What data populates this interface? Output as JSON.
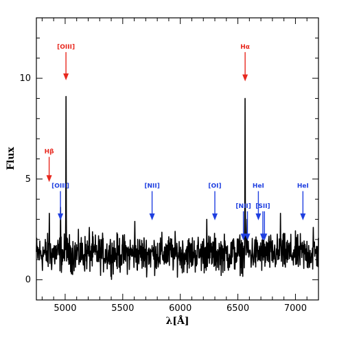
{
  "chart_data": {
    "type": "line",
    "title": "",
    "xlabel": "λ[Å]",
    "ylabel": "Flux",
    "xlim": [
      4750,
      7200
    ],
    "ylim": [
      -1,
      13
    ],
    "xticks": [
      5000,
      5500,
      6000,
      6500,
      7000
    ],
    "yticks": [
      0,
      5,
      10
    ],
    "grid": false,
    "legend": "none",
    "colors": {
      "spectrum": "#000000",
      "detected": "#e8281e",
      "expected": "#1f3fe0"
    },
    "series": [
      {
        "baseline": 1.3,
        "peaks": [
          {
            "x": 4863,
            "y": 3.3
          },
          {
            "x": 4960,
            "y": 3.6
          },
          {
            "x": 5008,
            "y": 9.1
          },
          {
            "x": 5210,
            "y": 2.6
          },
          {
            "x": 5605,
            "y": 2.9
          },
          {
            "x": 6230,
            "y": 3.0
          },
          {
            "x": 6563,
            "y": 9.0
          },
          {
            "x": 6580,
            "y": 3.0
          },
          {
            "x": 6870,
            "y": 3.3
          },
          {
            "x": 7155,
            "y": 2.6
          }
        ]
      }
    ],
    "annotations": [
      {
        "label": "Hβ",
        "x": 4861,
        "y_top": 6.1,
        "y_tip": 4.85,
        "kind": "detected"
      },
      {
        "label": "[OIII]",
        "x": 5007,
        "y_top": 11.3,
        "y_tip": 9.9,
        "kind": "detected"
      },
      {
        "label": "Hα",
        "x": 6563,
        "y_top": 11.3,
        "y_tip": 9.85,
        "kind": "detected"
      },
      {
        "label": "[OIII]",
        "x": 4959,
        "y_top": 4.4,
        "y_tip": 2.95,
        "kind": "expected"
      },
      {
        "label": "[NII]",
        "x": 5755,
        "y_top": 4.4,
        "y_tip": 2.95,
        "kind": "expected"
      },
      {
        "label": "[OI]",
        "x": 6300,
        "y_top": 4.4,
        "y_tip": 2.95,
        "kind": "expected"
      },
      {
        "label": "[NII]",
        "x": 6548,
        "y_top": 3.4,
        "y_tip": 1.95,
        "kind": "expected"
      },
      {
        "label": "",
        "x": 6583,
        "y_top": 3.4,
        "y_tip": 1.95,
        "kind": "expected"
      },
      {
        "label": "HeI",
        "x": 6678,
        "y_top": 4.4,
        "y_tip": 2.95,
        "kind": "expected"
      },
      {
        "label": "[SII]",
        "x": 6717,
        "y_top": 3.4,
        "y_tip": 1.95,
        "kind": "expected"
      },
      {
        "label": "",
        "x": 6731,
        "y_top": 3.4,
        "y_tip": 1.95,
        "kind": "expected"
      },
      {
        "label": "HeI",
        "x": 7065,
        "y_top": 4.4,
        "y_tip": 2.95,
        "kind": "expected"
      }
    ]
  }
}
